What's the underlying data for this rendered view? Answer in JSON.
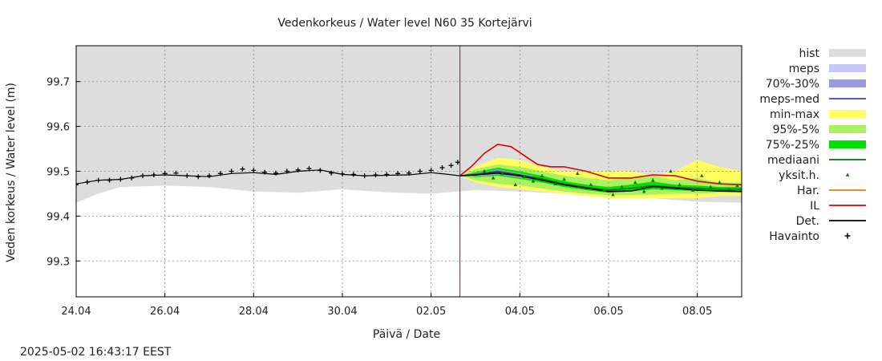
{
  "chart_data": {
    "type": "line",
    "title": "Vedenkorkeus / Water level   N60 35 Kortejärvi",
    "xlabel": "Päivä / Date",
    "ylabel": "Veden korkeus / Water level (m)",
    "timestamp": "2025-05-02 16:43:17 EEST",
    "x_range_days": [
      0,
      15
    ],
    "x_ticks": [
      {
        "day": 0,
        "label": "24.04"
      },
      {
        "day": 2,
        "label": "26.04"
      },
      {
        "day": 4,
        "label": "28.04"
      },
      {
        "day": 6,
        "label": "30.04"
      },
      {
        "day": 8,
        "label": "02.05"
      },
      {
        "day": 10,
        "label": "04.05"
      },
      {
        "day": 12,
        "label": "06.05"
      },
      {
        "day": 14,
        "label": "08.05"
      }
    ],
    "ylim": [
      99.22,
      99.78
    ],
    "y_ticks": [
      99.3,
      99.4,
      99.5,
      99.6,
      99.7
    ],
    "grid": true,
    "forecast_start_day": 8.65,
    "colors": {
      "hist": "#dddddd",
      "meps": "#c8c8f8",
      "p70_30": "#9a9ae0",
      "meps_med": "#4040c8",
      "minmax": "#ffff60",
      "p95_5": "#aaf060",
      "p75_25": "#00e000",
      "mediaani": "#007000",
      "yksit": "#008000",
      "har": "#e08000",
      "il": "#e00000",
      "det": "#000000",
      "havainto": "#000000",
      "forecast_line": "#cc0000"
    },
    "legend": [
      {
        "key": "hist",
        "label": "hist",
        "kind": "band",
        "color": "#dddddd"
      },
      {
        "key": "meps",
        "label": "meps",
        "kind": "band",
        "color": "#c8c8f8"
      },
      {
        "key": "p70_30",
        "label": "70%-30%",
        "kind": "band",
        "color": "#9a9ae0"
      },
      {
        "key": "meps_med",
        "label": "meps-med",
        "kind": "line",
        "color": "#4040c8"
      },
      {
        "key": "minmax",
        "label": "min-max",
        "kind": "band",
        "color": "#ffff60"
      },
      {
        "key": "p95_5",
        "label": "95%-5%",
        "kind": "band",
        "color": "#aaf060"
      },
      {
        "key": "p75_25",
        "label": "75%-25%",
        "kind": "band",
        "color": "#00e000"
      },
      {
        "key": "mediaani",
        "label": "mediaani",
        "kind": "line",
        "color": "#007000"
      },
      {
        "key": "yksit",
        "label": "yksit.h.",
        "kind": "point",
        "color": "#008000"
      },
      {
        "key": "har",
        "label": "Har.",
        "kind": "line",
        "color": "#e08000"
      },
      {
        "key": "il",
        "label": "IL",
        "kind": "line",
        "color": "#e00000"
      },
      {
        "key": "det",
        "label": "Det.",
        "kind": "line",
        "color": "#000000"
      },
      {
        "key": "havainto",
        "label": "Havainto",
        "kind": "plus",
        "color": "#000000"
      }
    ],
    "series": {
      "hist_upper": [
        [
          0,
          99.78
        ],
        [
          15,
          99.78
        ]
      ],
      "hist_lower": [
        [
          0,
          99.43
        ],
        [
          0.5,
          99.45
        ],
        [
          1,
          99.465
        ],
        [
          2,
          99.468
        ],
        [
          3,
          99.465
        ],
        [
          4,
          99.455
        ],
        [
          5,
          99.452
        ],
        [
          6,
          99.46
        ],
        [
          7,
          99.453
        ],
        [
          8,
          99.45
        ],
        [
          9,
          99.458
        ],
        [
          10,
          99.455
        ],
        [
          11,
          99.45
        ],
        [
          12,
          99.445
        ],
        [
          13,
          99.44
        ],
        [
          14,
          99.432
        ],
        [
          15,
          99.43
        ]
      ],
      "minmax_upper": [
        [
          8.65,
          99.49
        ],
        [
          9,
          99.51
        ],
        [
          9.5,
          99.53
        ],
        [
          10,
          99.525
        ],
        [
          10.5,
          99.51
        ],
        [
          11,
          99.5
        ],
        [
          11.5,
          99.5
        ],
        [
          12,
          99.5
        ],
        [
          12.5,
          99.5
        ],
        [
          13,
          99.49
        ],
        [
          13.5,
          99.5
        ],
        [
          14,
          99.525
        ],
        [
          14.5,
          99.51
        ],
        [
          15,
          99.5
        ]
      ],
      "minmax_lower": [
        [
          8.65,
          99.49
        ],
        [
          9,
          99.475
        ],
        [
          9.5,
          99.465
        ],
        [
          10,
          99.46
        ],
        [
          10.5,
          99.455
        ],
        [
          11,
          99.45
        ],
        [
          11.5,
          99.445
        ],
        [
          12,
          99.44
        ],
        [
          12.5,
          99.44
        ],
        [
          13,
          99.44
        ],
        [
          13.5,
          99.44
        ],
        [
          14,
          99.44
        ],
        [
          14.5,
          99.445
        ],
        [
          15,
          99.445
        ]
      ],
      "p95_upper": [
        [
          8.65,
          99.49
        ],
        [
          9,
          99.505
        ],
        [
          9.5,
          99.515
        ],
        [
          10,
          99.51
        ],
        [
          10.5,
          99.5
        ],
        [
          11,
          99.49
        ],
        [
          11.5,
          99.485
        ],
        [
          12,
          99.48
        ],
        [
          12.5,
          99.485
        ],
        [
          13,
          99.49
        ],
        [
          13.5,
          99.48
        ],
        [
          14,
          99.485
        ],
        [
          14.5,
          99.475
        ],
        [
          15,
          99.475
        ]
      ],
      "p95_lower": [
        [
          8.65,
          99.49
        ],
        [
          9,
          99.48
        ],
        [
          9.5,
          99.472
        ],
        [
          10,
          99.468
        ],
        [
          10.5,
          99.462
        ],
        [
          11,
          99.455
        ],
        [
          11.5,
          99.45
        ],
        [
          12,
          99.447
        ],
        [
          12.5,
          99.447
        ],
        [
          13,
          99.448
        ],
        [
          13.5,
          99.45
        ],
        [
          14,
          99.45
        ],
        [
          14.5,
          99.452
        ],
        [
          15,
          99.452
        ]
      ],
      "p75_upper": [
        [
          8.65,
          99.49
        ],
        [
          9,
          99.498
        ],
        [
          9.5,
          99.508
        ],
        [
          10,
          99.5
        ],
        [
          10.5,
          99.49
        ],
        [
          11,
          99.478
        ],
        [
          11.5,
          99.47
        ],
        [
          12,
          99.465
        ],
        [
          12.5,
          99.47
        ],
        [
          13,
          99.477
        ],
        [
          13.5,
          99.47
        ],
        [
          14,
          99.468
        ],
        [
          14.5,
          99.465
        ],
        [
          15,
          99.465
        ]
      ],
      "p75_lower": [
        [
          8.65,
          99.49
        ],
        [
          9,
          99.487
        ],
        [
          9.5,
          99.49
        ],
        [
          10,
          99.483
        ],
        [
          10.5,
          99.475
        ],
        [
          11,
          99.465
        ],
        [
          11.5,
          99.458
        ],
        [
          12,
          99.452
        ],
        [
          12.5,
          99.455
        ],
        [
          13,
          99.46
        ],
        [
          13.5,
          99.458
        ],
        [
          14,
          99.456
        ],
        [
          14.5,
          99.455
        ],
        [
          15,
          99.455
        ]
      ],
      "meps_upper": [
        [
          8.65,
          99.49
        ],
        [
          9,
          99.496
        ],
        [
          9.5,
          99.505
        ],
        [
          10,
          99.496
        ],
        [
          10.3,
          99.49
        ]
      ],
      "meps_lower": [
        [
          8.65,
          99.49
        ],
        [
          9,
          99.488
        ],
        [
          9.5,
          99.492
        ],
        [
          10,
          99.486
        ],
        [
          10.3,
          99.482
        ]
      ],
      "mediaani": [
        [
          8.65,
          99.49
        ],
        [
          9,
          99.493
        ],
        [
          9.5,
          99.5
        ],
        [
          10,
          99.492
        ],
        [
          10.5,
          99.483
        ],
        [
          11,
          99.472
        ],
        [
          11.5,
          99.464
        ],
        [
          12,
          99.458
        ],
        [
          12.5,
          99.462
        ],
        [
          13,
          99.468
        ],
        [
          13.5,
          99.464
        ],
        [
          14,
          99.462
        ],
        [
          14.5,
          99.46
        ],
        [
          15,
          99.46
        ]
      ],
      "meps_med": [
        [
          8.65,
          99.49
        ],
        [
          9,
          99.492
        ],
        [
          9.5,
          99.498
        ],
        [
          10,
          99.49
        ],
        [
          10.3,
          99.486
        ]
      ],
      "il": [
        [
          8.65,
          99.49
        ],
        [
          8.9,
          99.51
        ],
        [
          9.2,
          99.54
        ],
        [
          9.5,
          99.56
        ],
        [
          9.8,
          99.555
        ],
        [
          10.1,
          99.535
        ],
        [
          10.4,
          99.515
        ],
        [
          10.7,
          99.51
        ],
        [
          11,
          99.51
        ],
        [
          11.5,
          99.5
        ],
        [
          12,
          99.485
        ],
        [
          12.5,
          99.485
        ],
        [
          13,
          99.492
        ],
        [
          13.5,
          99.49
        ],
        [
          14,
          99.478
        ],
        [
          14.5,
          99.472
        ],
        [
          15,
          99.47
        ]
      ],
      "det": [
        [
          8.65,
          99.49
        ],
        [
          9,
          99.492
        ],
        [
          9.5,
          99.496
        ],
        [
          10,
          99.49
        ],
        [
          10.5,
          99.48
        ],
        [
          11,
          99.47
        ],
        [
          11.5,
          99.462
        ],
        [
          12,
          99.455
        ],
        [
          12.5,
          99.456
        ],
        [
          13,
          99.466
        ],
        [
          13.5,
          99.462
        ],
        [
          14,
          99.458
        ],
        [
          14.5,
          99.456
        ],
        [
          15,
          99.455
        ]
      ],
      "det_hist": [
        [
          0,
          99.472
        ],
        [
          0.5,
          99.48
        ],
        [
          1,
          99.482
        ],
        [
          1.5,
          99.49
        ],
        [
          2,
          99.492
        ],
        [
          2.5,
          99.49
        ],
        [
          3,
          99.488
        ],
        [
          3.5,
          99.495
        ],
        [
          4,
          99.497
        ],
        [
          4.5,
          99.493
        ],
        [
          5,
          99.5
        ],
        [
          5.5,
          99.503
        ],
        [
          6,
          99.493
        ],
        [
          6.5,
          99.49
        ],
        [
          7,
          99.491
        ],
        [
          7.5,
          99.492
        ],
        [
          8,
          99.497
        ],
        [
          8.3,
          99.494
        ],
        [
          8.65,
          99.49
        ]
      ],
      "yksit_points": [
        [
          9.2,
          99.5
        ],
        [
          9.4,
          99.485
        ],
        [
          9.6,
          99.495
        ],
        [
          9.9,
          99.47
        ],
        [
          10.1,
          99.488
        ],
        [
          10.3,
          99.478
        ],
        [
          10.5,
          99.49
        ],
        [
          10.8,
          99.472
        ],
        [
          11.0,
          99.482
        ],
        [
          11.3,
          99.495
        ],
        [
          11.6,
          99.47
        ],
        [
          11.9,
          99.458
        ],
        [
          12.1,
          99.448
        ],
        [
          12.3,
          99.465
        ],
        [
          12.6,
          99.475
        ],
        [
          12.8,
          99.455
        ],
        [
          13.0,
          99.48
        ],
        [
          13.2,
          99.462
        ],
        [
          13.4,
          99.5
        ],
        [
          13.6,
          99.47
        ],
        [
          13.9,
          99.458
        ],
        [
          14.1,
          99.49
        ],
        [
          14.3,
          99.465
        ],
        [
          14.5,
          99.475
        ],
        [
          14.7,
          99.46
        ],
        [
          14.9,
          99.468
        ]
      ],
      "havainto_points": [
        [
          0,
          99.47
        ],
        [
          0.25,
          99.476
        ],
        [
          0.5,
          99.48
        ],
        [
          0.75,
          99.48
        ],
        [
          1,
          99.482
        ],
        [
          1.25,
          99.485
        ],
        [
          1.5,
          99.49
        ],
        [
          1.75,
          99.492
        ],
        [
          2,
          99.495
        ],
        [
          2.25,
          99.496
        ],
        [
          2.5,
          99.49
        ],
        [
          2.75,
          99.488
        ],
        [
          3,
          99.49
        ],
        [
          3.25,
          99.495
        ],
        [
          3.5,
          99.5
        ],
        [
          3.75,
          99.505
        ],
        [
          4,
          99.502
        ],
        [
          4.25,
          99.498
        ],
        [
          4.5,
          99.496
        ],
        [
          4.75,
          99.5
        ],
        [
          5,
          99.503
        ],
        [
          5.25,
          99.506
        ],
        [
          5.5,
          99.502
        ],
        [
          5.75,
          99.496
        ],
        [
          6,
          99.494
        ],
        [
          6.25,
          99.493
        ],
        [
          6.5,
          99.49
        ],
        [
          6.75,
          99.492
        ],
        [
          7,
          99.493
        ],
        [
          7.25,
          99.495
        ],
        [
          7.5,
          99.496
        ],
        [
          7.75,
          99.5
        ],
        [
          8,
          99.502
        ],
        [
          8.25,
          99.508
        ],
        [
          8.45,
          99.513
        ],
        [
          8.6,
          99.52
        ]
      ]
    }
  }
}
